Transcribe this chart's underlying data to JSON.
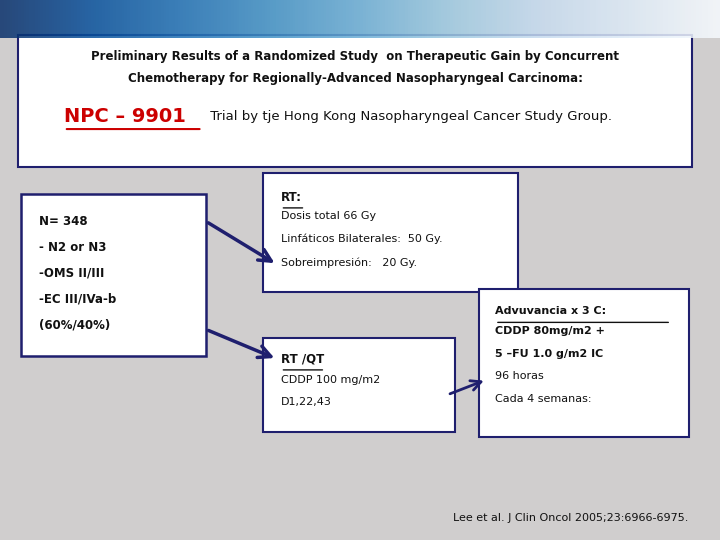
{
  "bg_color": "#d0cece",
  "header_box": {
    "text_line1": "Preliminary Results of a Randomized Study  on Therapeutic Gain by Concurrent",
    "text_line2": "Chemotherapy for Regionally-Advanced Nasopharyngeal Carcinoma:",
    "npc_text": "NPC – 9901",
    "subtitle": " Trial by tje Hong Kong Nasopharyngeal Cancer Study Group.",
    "box_color": "#ffffff",
    "border_color": "#1f1f6e",
    "npc_color": "#cc0000"
  },
  "left_box": {
    "lines": [
      "N= 348",
      "- N2 or N3",
      "-OMS II/III",
      "-EC III/IVa-b",
      "(60%/40%)"
    ],
    "box_color": "#ffffff",
    "border_color": "#1f1f6e"
  },
  "rt_box": {
    "title": "RT:",
    "lines": [
      "Dosis total 66 Gy",
      "Linfáticos Bilaterales:  50 Gy.",
      "Sobreimpresión:   20 Gy."
    ],
    "box_color": "#ffffff",
    "border_color": "#1f1f6e"
  },
  "rtqt_box": {
    "title": "RT /QT",
    "lines": [
      "CDDP 100 mg/m2",
      "D1,22,43"
    ],
    "box_color": "#ffffff",
    "border_color": "#1f1f6e"
  },
  "adyu_box": {
    "title": "Advuvancia x 3 C:",
    "lines": [
      "CDDP 80mg/m2 +",
      "5 –FU 1.0 g/m2 IC",
      "96 horas",
      "Cada 4 semanas:"
    ],
    "box_color": "#ffffff",
    "border_color": "#1f1f6e",
    "bold_lines": [
      0,
      1
    ]
  },
  "footer": "Lee et al. J Clin Oncol 2005;23:6966-6975.",
  "arrow_color": "#1f1f6e"
}
